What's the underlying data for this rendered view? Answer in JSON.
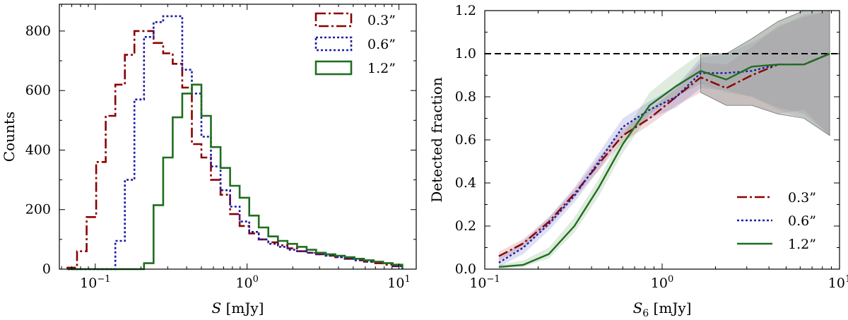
{
  "colors": {
    "0.3": "#8b0000",
    "0.6": "#1c1ca8",
    "1.2": "#1f6e1f",
    "reference": "#000000",
    "grey_band": "#a6a6a6"
  },
  "chart_data": [
    {
      "type": "step-histogram",
      "xlabel_math": "S",
      "xlabel_unit": " [mJy]",
      "ylabel": "Counts",
      "xscale": "log",
      "xlim": [
        0.058,
        13
      ],
      "ylim": [
        0,
        890
      ],
      "xticks": [
        {
          "value": 0.1,
          "base": "10",
          "exp": "−1"
        },
        {
          "value": 1,
          "base": "10",
          "exp": "0"
        },
        {
          "value": 10,
          "base": "10",
          "exp": "1"
        }
      ],
      "yticks": [
        0,
        200,
        400,
        600,
        800
      ],
      "legend_position": "top-right",
      "bin_edges": [
        0.0656,
        0.0758,
        0.0877,
        0.1014,
        0.1172,
        0.1355,
        0.1567,
        0.1811,
        0.2094,
        0.2421,
        0.2799,
        0.3236,
        0.3741,
        0.4325,
        0.5,
        0.578,
        0.6683,
        0.7726,
        0.8932,
        1.0327,
        1.1939,
        1.3803,
        1.5958,
        1.845,
        2.1331,
        2.4661,
        2.8512,
        3.2963,
        3.8109,
        4.4059,
        5.0939,
        5.8892,
        6.8087,
        7.8717,
        9.1007,
        10.5216
      ],
      "series": [
        {
          "name": "0.3”",
          "key": "0.3",
          "style": "dashdot",
          "counts": [
            5,
            60,
            175,
            360,
            515,
            620,
            720,
            800,
            800,
            760,
            725,
            690,
            610,
            420,
            375,
            300,
            250,
            185,
            145,
            120,
            100,
            90,
            80,
            70,
            60,
            55,
            50,
            45,
            40,
            35,
            30,
            25,
            20,
            15,
            10
          ]
        },
        {
          "name": "0.6”",
          "key": "0.6",
          "style": "dotted",
          "counts": [
            0,
            0,
            0,
            0,
            0,
            95,
            300,
            570,
            780,
            830,
            850,
            850,
            670,
            590,
            445,
            345,
            265,
            210,
            160,
            125,
            100,
            85,
            75,
            65,
            60,
            55,
            50,
            45,
            40,
            35,
            30,
            25,
            25,
            20,
            10
          ]
        },
        {
          "name": "1.2”",
          "key": "1.2",
          "style": "solid",
          "counts": [
            0,
            0,
            0,
            0,
            0,
            0,
            0,
            0,
            20,
            215,
            375,
            510,
            590,
            620,
            515,
            410,
            340,
            280,
            240,
            180,
            140,
            110,
            95,
            85,
            75,
            65,
            55,
            50,
            45,
            40,
            35,
            30,
            25,
            20,
            15
          ]
        }
      ]
    },
    {
      "type": "line",
      "xlabel_math": "S",
      "xlabel_sub": "6",
      "xlabel_unit": " [mJy]",
      "ylabel": "Detected fraction",
      "xscale": "log",
      "xlim": [
        0.1,
        10
      ],
      "ylim": [
        0,
        1.2
      ],
      "xticks": [
        {
          "value": 0.1,
          "base": "10",
          "exp": "−1"
        },
        {
          "value": 1,
          "base": "10",
          "exp": "0"
        },
        {
          "value": 10,
          "base": "10",
          "exp": "1"
        }
      ],
      "yticks": [
        0.0,
        0.2,
        0.4,
        0.6,
        0.8,
        1.0,
        1.2
      ],
      "reference_line": 1.0,
      "legend_position": "bottom-right",
      "x": [
        0.12,
        0.165,
        0.23,
        0.32,
        0.44,
        0.6,
        0.85,
        1.2,
        1.65,
        2.3,
        3.2,
        4.5,
        6.3,
        8.8
      ],
      "series": [
        {
          "name": "0.3”",
          "key": "0.3",
          "style": "dashdot",
          "y": [
            0.06,
            0.12,
            0.22,
            0.35,
            0.49,
            0.62,
            0.7,
            0.8,
            0.89,
            0.84,
            0.9,
            0.95,
            0.95,
            1.0
          ],
          "lower": [
            0.04,
            0.1,
            0.2,
            0.33,
            0.46,
            0.59,
            0.67,
            0.76,
            0.82,
            0.76,
            0.76,
            0.72,
            0.74,
            0.62
          ],
          "upper": [
            0.08,
            0.14,
            0.24,
            0.37,
            0.52,
            0.65,
            0.74,
            0.84,
            0.96,
            0.95,
            1.03,
            1.13,
            1.17,
            1.2
          ]
        },
        {
          "name": "0.6”",
          "key": "0.6",
          "style": "dotted",
          "y": [
            0.03,
            0.1,
            0.21,
            0.34,
            0.5,
            0.66,
            0.74,
            0.8,
            0.91,
            0.91,
            0.92,
            0.95,
            0.95,
            1.0
          ],
          "lower": [
            0.01,
            0.07,
            0.18,
            0.31,
            0.46,
            0.62,
            0.7,
            0.75,
            0.84,
            0.83,
            0.8,
            0.75,
            0.72,
            0.62
          ],
          "upper": [
            0.05,
            0.13,
            0.24,
            0.38,
            0.54,
            0.7,
            0.78,
            0.85,
            0.98,
            1.0,
            1.05,
            1.12,
            1.18,
            1.2
          ]
        },
        {
          "name": "1.2”",
          "key": "1.2",
          "style": "solid",
          "y": [
            0.01,
            0.02,
            0.07,
            0.2,
            0.38,
            0.58,
            0.76,
            0.85,
            0.92,
            0.88,
            0.94,
            0.95,
            0.95,
            1.0
          ],
          "lower": [
            0.0,
            0.01,
            0.05,
            0.17,
            0.34,
            0.54,
            0.72,
            0.8,
            0.86,
            0.82,
            0.8,
            0.74,
            0.7,
            0.62
          ],
          "upper": [
            0.02,
            0.04,
            0.1,
            0.24,
            0.42,
            0.62,
            0.82,
            0.92,
            1.0,
            1.0,
            1.07,
            1.15,
            1.2,
            1.2
          ]
        }
      ]
    }
  ]
}
